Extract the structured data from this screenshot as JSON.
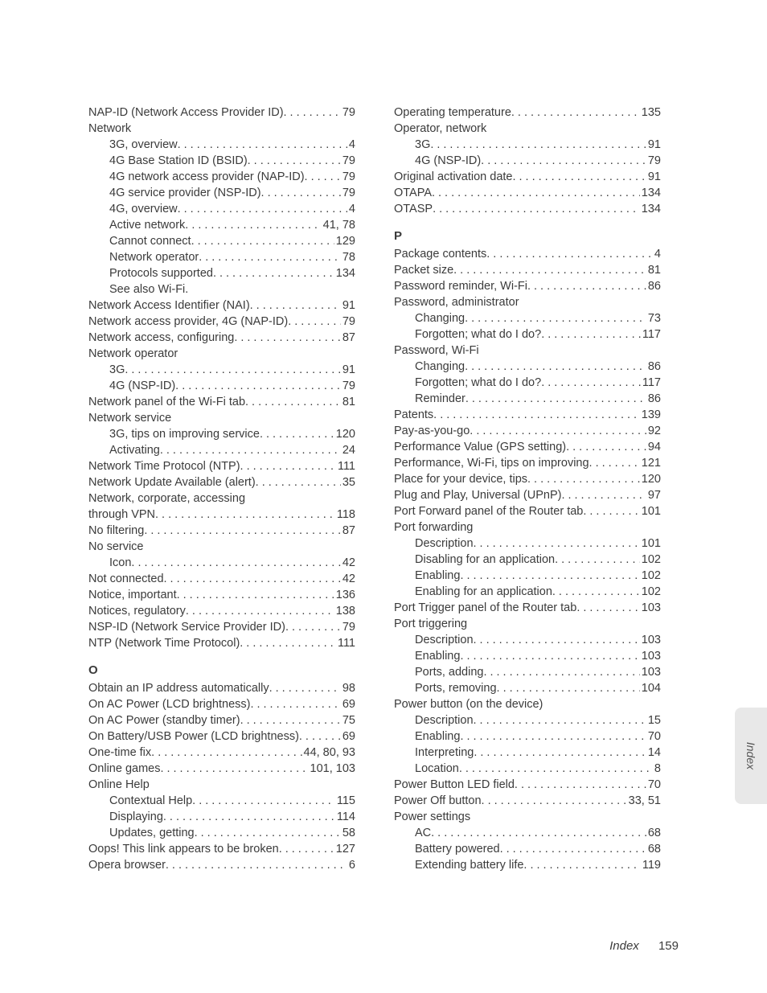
{
  "footer": {
    "label": "Index",
    "page": "159"
  },
  "side_tab": "Index",
  "left_column": {
    "sections": [
      {
        "letter": null,
        "entries": [
          {
            "label": "NAP-ID (Network Access Provider ID)",
            "page": "79",
            "indent": 0
          },
          {
            "label": "Network",
            "page": null,
            "indent": 0
          },
          {
            "label": "3G, overview",
            "page": "4",
            "indent": 1
          },
          {
            "label": "4G Base Station ID (BSID)",
            "page": "79",
            "indent": 1
          },
          {
            "label": "4G network access provider (NAP-ID)",
            "page": "79",
            "indent": 1
          },
          {
            "label": "4G service provider (NSP-ID)",
            "page": "79",
            "indent": 1
          },
          {
            "label": "4G, overview",
            "page": "4",
            "indent": 1
          },
          {
            "label": "Active network",
            "page": " 41, 78",
            "indent": 1
          },
          {
            "label": "Cannot connect",
            "page": " 129",
            "indent": 1
          },
          {
            "label": "Network operator",
            "page": "78",
            "indent": 1
          },
          {
            "label": "Protocols supported",
            "page": " 134",
            "indent": 1
          },
          {
            "label": "See also Wi-Fi.",
            "page": null,
            "indent": 1
          },
          {
            "label": "Network Access Identifier (NAI)",
            "page": "91",
            "indent": 0
          },
          {
            "label": "Network access provider, 4G (NAP-ID)",
            "page": "79",
            "indent": 0
          },
          {
            "label": "Network access, configuring",
            "page": "87",
            "indent": 0
          },
          {
            "label": "Network operator",
            "page": null,
            "indent": 0
          },
          {
            "label": "3G",
            "page": "91",
            "indent": 1
          },
          {
            "label": "4G (NSP-ID)",
            "page": "79",
            "indent": 1
          },
          {
            "label": "Network panel of the Wi-Fi tab",
            "page": "81",
            "indent": 0
          },
          {
            "label": "Network service",
            "page": null,
            "indent": 0
          },
          {
            "label": "3G, tips on improving service",
            "page": " 120",
            "indent": 1
          },
          {
            "label": "Activating",
            "page": "24",
            "indent": 1
          },
          {
            "label": "Network Time Protocol (NTP)",
            "page": " 111",
            "indent": 0
          },
          {
            "label": "Network Update Available (alert)",
            "page": "35",
            "indent": 0
          },
          {
            "label": "Network, corporate, accessing",
            "page": null,
            "indent": 0
          },
          {
            "label": "through VPN",
            "page": " 118",
            "indent": 0
          },
          {
            "label": "No filtering",
            "page": "87",
            "indent": 0
          },
          {
            "label": "No service",
            "page": null,
            "indent": 0
          },
          {
            "label": "Icon",
            "page": "42",
            "indent": 1
          },
          {
            "label": "Not connected",
            "page": "42",
            "indent": 0
          },
          {
            "label": "Notice, important",
            "page": " 136",
            "indent": 0
          },
          {
            "label": "Notices, regulatory",
            "page": " 138",
            "indent": 0
          },
          {
            "label": "NSP-ID (Network Service Provider ID)",
            "page": "79",
            "indent": 0
          },
          {
            "label": "NTP (Network Time Protocol)",
            "page": " 111",
            "indent": 0
          }
        ]
      },
      {
        "letter": "O",
        "entries": [
          {
            "label": "Obtain an IP address automatically",
            "page": "98",
            "indent": 0
          },
          {
            "label": "On AC Power (LCD brightness)",
            "page": "69",
            "indent": 0
          },
          {
            "label": "On AC Power (standby timer)",
            "page": "75",
            "indent": 0
          },
          {
            "label": "On Battery/USB Power (LCD brightness)",
            "page": "69",
            "indent": 0
          },
          {
            "label": "One-time fix",
            "page": " 44, 80, 93",
            "indent": 0
          },
          {
            "label": "Online games",
            "page": " 101, 103",
            "indent": 0
          },
          {
            "label": "Online Help",
            "page": null,
            "indent": 0
          },
          {
            "label": "Contextual Help",
            "page": " 115",
            "indent": 1
          },
          {
            "label": "Displaying",
            "page": " 114",
            "indent": 1
          },
          {
            "label": "Updates, getting",
            "page": "58",
            "indent": 1
          },
          {
            "label": "Oops! This link appears to be broken",
            "page": " 127",
            "indent": 0
          },
          {
            "label": "Opera browser",
            "page": "6",
            "indent": 0
          }
        ]
      }
    ]
  },
  "right_column": {
    "sections": [
      {
        "letter": null,
        "entries": [
          {
            "label": "Operating temperature",
            "page": " 135",
            "indent": 0
          },
          {
            "label": "Operator, network",
            "page": null,
            "indent": 0
          },
          {
            "label": "3G",
            "page": " 91",
            "indent": 1
          },
          {
            "label": "4G (NSP-ID)",
            "page": " 79",
            "indent": 1
          },
          {
            "label": "Original activation date",
            "page": " 91",
            "indent": 0
          },
          {
            "label": "OTAPA",
            "page": " 134",
            "indent": 0
          },
          {
            "label": "OTASP",
            "page": " 134",
            "indent": 0
          }
        ]
      },
      {
        "letter": "P",
        "entries": [
          {
            "label": "Package contents",
            "page": "4",
            "indent": 0
          },
          {
            "label": "Packet size",
            "page": " 81",
            "indent": 0
          },
          {
            "label": "Password reminder, Wi-Fi",
            "page": " 86",
            "indent": 0
          },
          {
            "label": "Password, administrator",
            "page": null,
            "indent": 0
          },
          {
            "label": "Changing",
            "page": " 73",
            "indent": 1
          },
          {
            "label": "Forgotten; what do I do?",
            "page": " 117",
            "indent": 1
          },
          {
            "label": "Password, Wi-Fi",
            "page": null,
            "indent": 0
          },
          {
            "label": "Changing",
            "page": " 86",
            "indent": 1
          },
          {
            "label": "Forgotten; what do I do?",
            "page": " 117",
            "indent": 1
          },
          {
            "label": "Reminder",
            "page": " 86",
            "indent": 1
          },
          {
            "label": "Patents",
            "page": " 139",
            "indent": 0
          },
          {
            "label": "Pay-as-you-go",
            "page": " 92",
            "indent": 0
          },
          {
            "label": "Performance Value (GPS setting)",
            "page": " 94",
            "indent": 0
          },
          {
            "label": "Performance, Wi-Fi, tips on improving",
            "page": " 121",
            "indent": 0
          },
          {
            "label": "Place for your device, tips",
            "page": " 120",
            "indent": 0
          },
          {
            "label": "Plug and Play, Universal (UPnP)",
            "page": " 97",
            "indent": 0
          },
          {
            "label": "Port Forward panel of the Router tab",
            "page": " 101",
            "indent": 0
          },
          {
            "label": "Port forwarding",
            "page": null,
            "indent": 0
          },
          {
            "label": "Description",
            "page": " 101",
            "indent": 1
          },
          {
            "label": "Disabling for an application",
            "page": " 102",
            "indent": 1
          },
          {
            "label": "Enabling",
            "page": " 102",
            "indent": 1
          },
          {
            "label": "Enabling for an application",
            "page": " 102",
            "indent": 1
          },
          {
            "label": "Port Trigger panel of the Router tab",
            "page": " 103",
            "indent": 0
          },
          {
            "label": "Port triggering",
            "page": null,
            "indent": 0
          },
          {
            "label": "Description",
            "page": " 103",
            "indent": 1
          },
          {
            "label": "Enabling",
            "page": " 103",
            "indent": 1
          },
          {
            "label": "Ports, adding",
            "page": " 103",
            "indent": 1
          },
          {
            "label": "Ports, removing",
            "page": " 104",
            "indent": 1
          },
          {
            "label": "Power button (on the device)",
            "page": null,
            "indent": 0
          },
          {
            "label": "Description",
            "page": " 15",
            "indent": 1
          },
          {
            "label": "Enabling",
            "page": " 70",
            "indent": 1
          },
          {
            "label": "Interpreting",
            "page": " 14",
            "indent": 1
          },
          {
            "label": "Location",
            "page": "8",
            "indent": 1
          },
          {
            "label": "Power Button LED field",
            "page": " 70",
            "indent": 0
          },
          {
            "label": "Power Off button",
            "page": " 33, 51",
            "indent": 0
          },
          {
            "label": "Power settings",
            "page": null,
            "indent": 0
          },
          {
            "label": "AC",
            "page": " 68",
            "indent": 1
          },
          {
            "label": "Battery powered",
            "page": " 68",
            "indent": 1
          },
          {
            "label": "Extending battery life",
            "page": " 119",
            "indent": 1
          }
        ]
      }
    ]
  }
}
